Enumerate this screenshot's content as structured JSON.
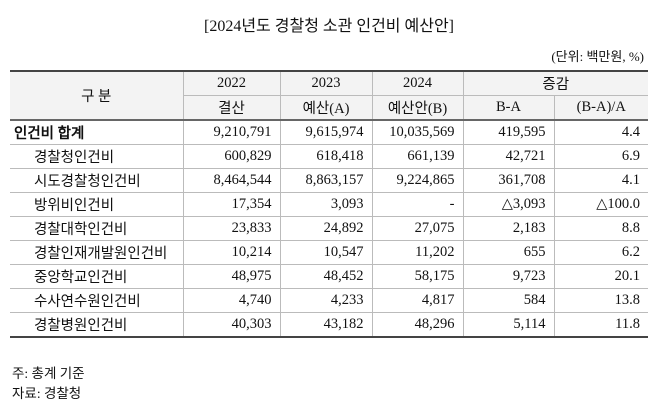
{
  "title": "[2024년도 경찰청 소관 인건비 예산안]",
  "unit": "(단위: 백만원, %)",
  "table": {
    "header": {
      "label": "구 분",
      "years": [
        {
          "year": "2022",
          "sub": "결산"
        },
        {
          "year": "2023",
          "sub": "예산(A)"
        },
        {
          "year": "2024",
          "sub": "예산안(B)"
        }
      ],
      "change": {
        "label": "증감",
        "cols": [
          "B-A",
          "(B-A)/A"
        ]
      }
    },
    "rows": [
      [
        "인건비 합계",
        "9,210,791",
        "9,615,974",
        "10,035,569",
        "419,595",
        "4.4"
      ],
      [
        "경찰청인건비",
        "600,829",
        "618,418",
        "661,139",
        "42,721",
        "6.9"
      ],
      [
        "시도경찰청인건비",
        "8,464,544",
        "8,863,157",
        "9,224,865",
        "361,708",
        "4.1"
      ],
      [
        "방위비인건비",
        "17,354",
        "3,093",
        "-",
        "△3,093",
        "△100.0"
      ],
      [
        "경찰대학인건비",
        "23,833",
        "24,892",
        "27,075",
        "2,183",
        "8.8"
      ],
      [
        "경찰인재개발원인건비",
        "10,214",
        "10,547",
        "11,202",
        "655",
        "6.2"
      ],
      [
        "중앙학교인건비",
        "48,975",
        "48,452",
        "58,175",
        "9,723",
        "20.1"
      ],
      [
        "수사연수원인건비",
        "4,740",
        "4,233",
        "4,817",
        "584",
        "13.8"
      ],
      [
        "경찰병원인건비",
        "40,303",
        "43,182",
        "48,296",
        "5,114",
        "11.8"
      ]
    ]
  },
  "notes": [
    "주: 총계 기준",
    "자료: 경찰청"
  ]
}
